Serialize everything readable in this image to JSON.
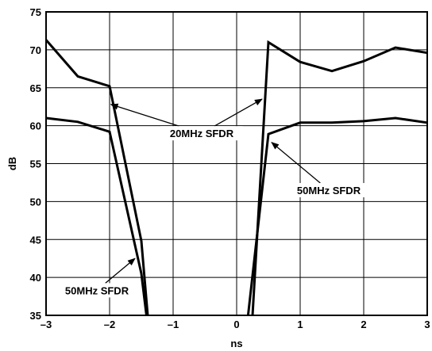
{
  "chart_data": {
    "type": "line",
    "title": "",
    "xlabel": "ns",
    "ylabel": "dB",
    "xlim": [
      -3,
      3
    ],
    "ylim": [
      35,
      75
    ],
    "xticks": [
      -3,
      -2,
      -1,
      0,
      1,
      2,
      3
    ],
    "yticks": [
      35,
      40,
      45,
      50,
      55,
      60,
      65,
      70,
      75
    ],
    "xtick_labels": [
      "–3",
      "–2",
      "–1",
      "0",
      "1",
      "2",
      "3"
    ],
    "ytick_labels": [
      "35",
      "40",
      "45",
      "50",
      "55",
      "60",
      "65",
      "70",
      "75"
    ],
    "grid": true,
    "legend": "none",
    "line_color": "#000000",
    "series": [
      {
        "key": "20mhz_left",
        "points": [
          [
            -3,
            71.3
          ],
          [
            -2.5,
            66.5
          ],
          [
            -2,
            65.2
          ],
          [
            -1.5,
            44.8
          ],
          [
            -1.4,
            35
          ]
        ]
      },
      {
        "key": "50mhz_left",
        "points": [
          [
            -3,
            61.0
          ],
          [
            -2.5,
            60.5
          ],
          [
            -2,
            59.2
          ],
          [
            -1.5,
            40.5
          ],
          [
            -1.42,
            35
          ]
        ]
      },
      {
        "key": "20mhz_right",
        "points": [
          [
            0.25,
            35
          ],
          [
            0.5,
            71.0
          ],
          [
            1,
            68.4
          ],
          [
            1.5,
            67.2
          ],
          [
            2,
            68.5
          ],
          [
            2.5,
            70.3
          ],
          [
            3,
            69.6
          ]
        ]
      },
      {
        "key": "50mhz_right",
        "points": [
          [
            0.18,
            35
          ],
          [
            0.5,
            58.9
          ],
          [
            1,
            60.4
          ],
          [
            1.5,
            60.4
          ],
          [
            2,
            60.6
          ],
          [
            2.5,
            61.0
          ],
          [
            3,
            60.4
          ]
        ]
      }
    ],
    "annotations": [
      {
        "text": "20MHz SFDR",
        "anchor": [
          -0.55,
          59.0
        ],
        "targets": [
          [
            -1.98,
            62.8
          ],
          [
            0.4,
            63.5
          ]
        ]
      },
      {
        "text": "50MHz SFDR",
        "anchor": [
          1.45,
          51.5
        ],
        "targets": [
          [
            0.55,
            57.8
          ]
        ]
      },
      {
        "text": "50MHz SFDR",
        "anchor": [
          -2.2,
          38.3
        ],
        "targets": [
          [
            -1.6,
            42.5
          ]
        ]
      }
    ]
  }
}
